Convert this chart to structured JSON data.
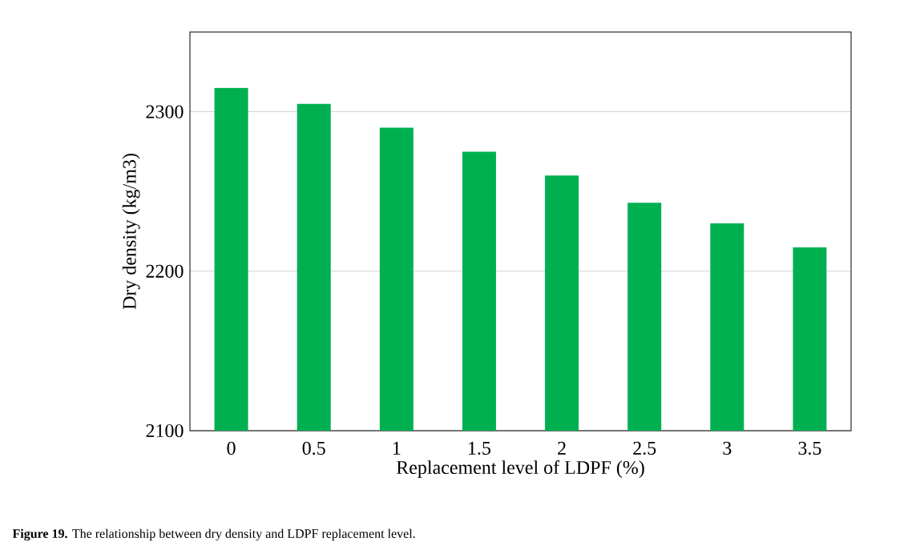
{
  "chart_data": {
    "type": "bar",
    "xlabel": "Replacement level of LDPF (%)",
    "ylabel": "Dry density (kg/m3)",
    "categories": [
      "0",
      "0.5",
      "1",
      "1.5",
      "2",
      "2.5",
      "3",
      "3.5"
    ],
    "values": [
      2315,
      2305,
      2290,
      2275,
      2260,
      2243,
      2230,
      2215
    ],
    "color": "#00b050",
    "ylim": [
      2100,
      2350
    ],
    "yticks": [
      2100,
      2200,
      2300
    ],
    "grid": "y",
    "annotations": [
      "**Figure 19.** The relationship between dry density and LDPF replacement level."
    ]
  }
}
